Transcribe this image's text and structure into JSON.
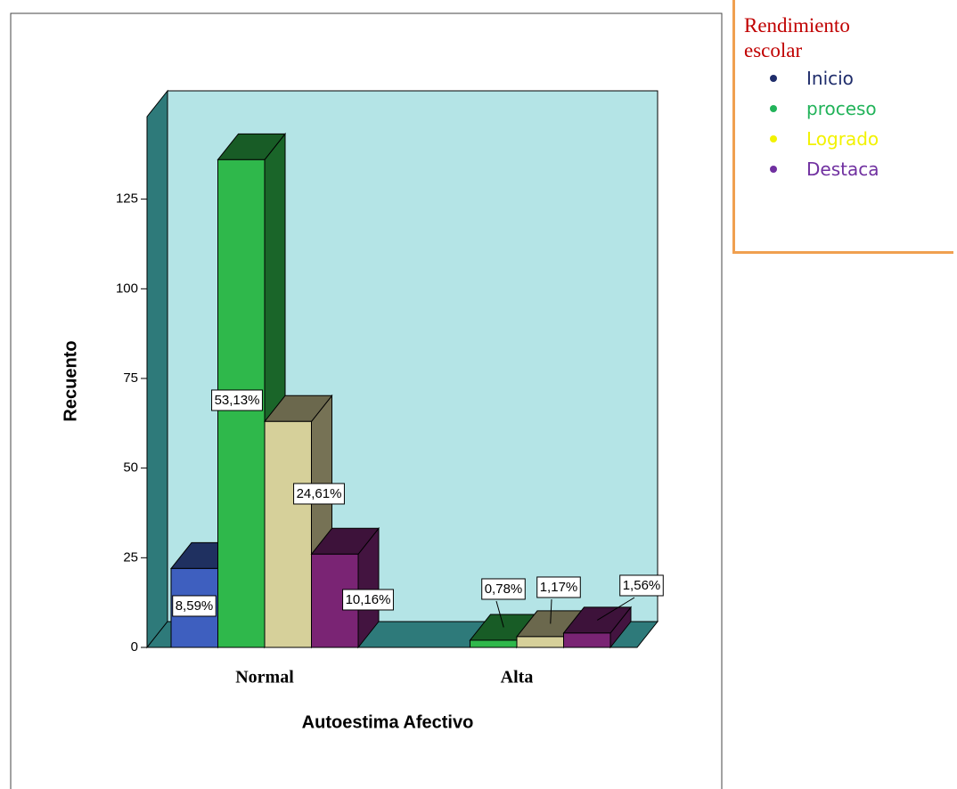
{
  "chart_data": {
    "type": "bar3d",
    "x_label": "Autoestima Afectivo",
    "y_label": "Recuento",
    "categories": [
      "Normal",
      "Alta"
    ],
    "series": [
      {
        "name": "Inicio",
        "color": "#3e5fbf",
        "text_color": "#1f2d6b",
        "values": [
          22,
          null
        ],
        "percent_labels": [
          "8,59%",
          null
        ]
      },
      {
        "name": "proceso",
        "color": "#2fb84b",
        "text_color": "#22b35a",
        "values": [
          136,
          2
        ],
        "percent_labels": [
          "53,13%",
          "0,78%"
        ]
      },
      {
        "name": "Logrado",
        "color": "#d6d09a",
        "text_color": "#f2f200",
        "values": [
          63,
          3
        ],
        "percent_labels": [
          "24,61%",
          "1,17%"
        ]
      },
      {
        "name": "Destaca",
        "color": "#7a2474",
        "text_color": "#7030a0",
        "values": [
          26,
          4
        ],
        "percent_labels": [
          "10,16%",
          "1,56%"
        ]
      }
    ],
    "legend_title": "Rendimiento escolar",
    "ylim": [
      0,
      148
    ],
    "yticks": [
      0,
      25,
      50,
      75,
      100,
      125
    ]
  }
}
